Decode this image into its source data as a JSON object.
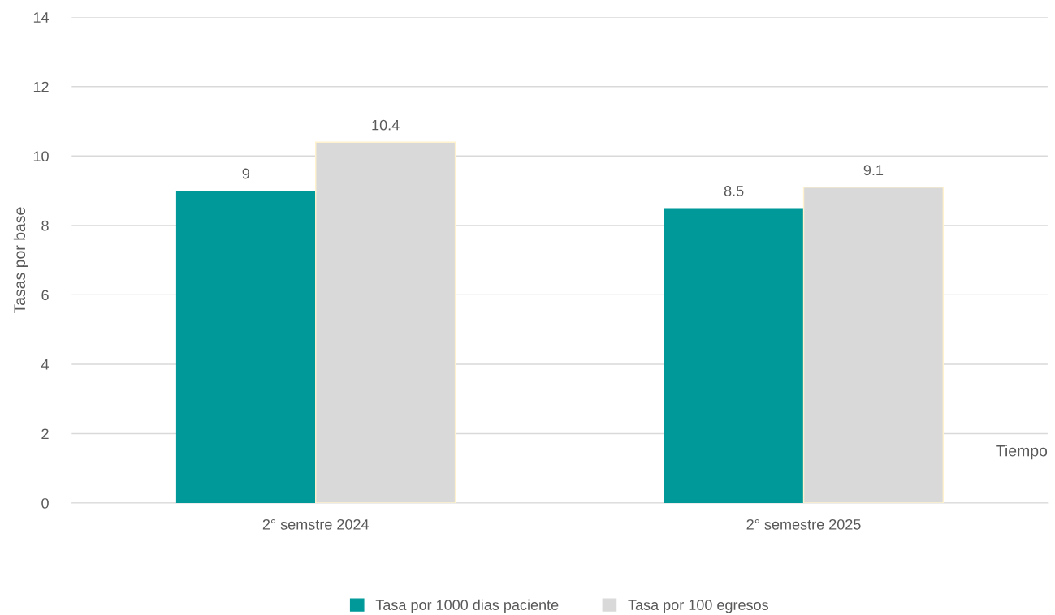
{
  "chart_data": {
    "type": "bar",
    "xlabel": "Tiempo",
    "ylabel": "Tasas por base",
    "categories": [
      "2° semstre 2024",
      "2° semestre 2025"
    ],
    "series": [
      {
        "name": "Tasa por 1000 dias paciente",
        "color": "#009999",
        "values": [
          9,
          8.5
        ]
      },
      {
        "name": "Tasa por 100 egresos",
        "color": "#d9d9d9",
        "values": [
          10.4,
          9.1
        ]
      }
    ],
    "ylim": [
      0,
      14
    ],
    "yticks": [
      0,
      2,
      4,
      6,
      8,
      10,
      12,
      14
    ],
    "grid": "y",
    "legend": "bottom",
    "data_labels": true
  }
}
